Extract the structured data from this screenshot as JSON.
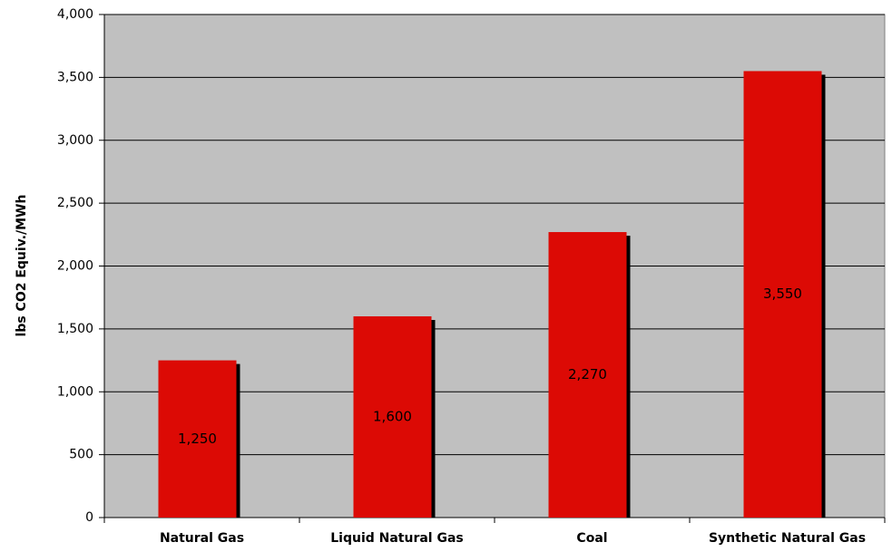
{
  "chart_data": {
    "type": "bar",
    "title": "",
    "xlabel": "",
    "ylabel": "lbs CO2 Equiv./MWh",
    "categories": [
      "Natural Gas",
      "Liquid Natural Gas",
      "Coal",
      "Synthetic Natural Gas"
    ],
    "values": [
      1250,
      1600,
      2270,
      3550
    ],
    "data_labels": [
      "1,250",
      "1,600",
      "2,270",
      "3,550"
    ],
    "ylim": [
      0,
      4000
    ],
    "y_ticks": [
      0,
      500,
      1000,
      1500,
      2000,
      2500,
      3000,
      3500,
      4000
    ],
    "y_tick_labels": [
      "0",
      "500",
      "1,000",
      "1,500",
      "2,000",
      "2,500",
      "3,000",
      "3,500",
      "4,000"
    ],
    "grid": true,
    "legend": "none",
    "colors": {
      "bar": "#dc0a05",
      "bar_shadow": "#000000",
      "plot_background": "#c0c0c0",
      "gridline": "#000000"
    }
  }
}
